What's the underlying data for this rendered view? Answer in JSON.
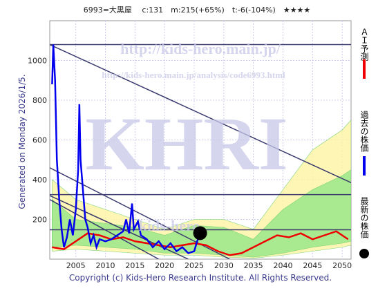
{
  "chart_data": {
    "type": "line",
    "title": "6993=大黒屋　 c:131　m:215(+65%)　t:-6(-104%)　★★★★",
    "side_note": "Generated on Monday 2026/1/5.",
    "copyright": "Copyright (c) Kids-Hero Research Institute. All Rights Reserved.",
    "watermarks": [
      "http://kids-hero.main.jp/",
      "http://kids-hero.main.jp/analysis/code6993.html",
      "KHRI",
      "kids-hero"
    ],
    "xlim": [
      2000.6,
      2051.5
    ],
    "ylim": [
      0,
      1200
    ],
    "xticks": [
      2005,
      2010,
      2015,
      2020,
      2025,
      2030,
      2035,
      2040,
      2045,
      2050
    ],
    "yticks": [
      200,
      400,
      600,
      800,
      1000
    ],
    "grid": true,
    "bands": [
      {
        "color": "#fdf5a8",
        "x": [
          2001,
          2005,
          2010,
          2015,
          2020,
          2025,
          2030,
          2035,
          2040,
          2045,
          2050,
          2051.5
        ],
        "low": [
          40,
          50,
          40,
          30,
          20,
          20,
          10,
          5,
          20,
          40,
          60,
          70
        ],
        "high": [
          400,
          300,
          250,
          200,
          150,
          200,
          200,
          150,
          350,
          550,
          650,
          700
        ]
      },
      {
        "color": "#9be88a",
        "x": [
          2001,
          2005,
          2010,
          2015,
          2020,
          2025,
          2030,
          2035,
          2040,
          2045,
          2050,
          2051.5
        ],
        "low": [
          60,
          70,
          60,
          50,
          30,
          30,
          20,
          10,
          30,
          60,
          80,
          90
        ],
        "high": [
          300,
          200,
          180,
          160,
          120,
          170,
          160,
          100,
          250,
          350,
          420,
          450
        ]
      }
    ],
    "line_color": "#3a3a6e",
    "lines": [
      {
        "x": [
          2000.6,
          2051.5
        ],
        "values": [
          1080,
          1080
        ]
      },
      {
        "x": [
          2000.6,
          2051.5
        ],
        "values": [
          1080,
          385
        ]
      },
      {
        "x": [
          2000.6,
          2031
        ],
        "values": [
          460,
          0
        ]
      },
      {
        "x": [
          2000.6,
          2024
        ],
        "values": [
          320,
          0
        ]
      },
      {
        "x": [
          2000.6,
          2019
        ],
        "values": [
          300,
          0
        ]
      },
      {
        "x": [
          2000.6,
          2051.5
        ],
        "values": [
          325,
          325
        ]
      },
      {
        "x": [
          2000.6,
          2051.5
        ],
        "values": [
          148,
          148
        ]
      }
    ],
    "series": [
      {
        "name": "ＡＩ予測",
        "color": "#ee0000",
        "x": [
          2001,
          2003,
          2005,
          2007,
          2009,
          2011,
          2013,
          2015,
          2017,
          2019,
          2021,
          2023,
          2025,
          2027,
          2029,
          2031,
          2033,
          2035,
          2037,
          2039,
          2041,
          2043,
          2045,
          2047,
          2049,
          2051
        ],
        "values": [
          60,
          50,
          90,
          130,
          120,
          100,
          110,
          90,
          80,
          70,
          60,
          70,
          80,
          70,
          40,
          20,
          30,
          60,
          90,
          120,
          110,
          130,
          100,
          120,
          140,
          100
        ]
      },
      {
        "name": "過去の株価",
        "color": "#0000ee",
        "x": [
          2001,
          2001.2,
          2001.5,
          2001.8,
          2002.2,
          2002.6,
          2003,
          2003.5,
          2004,
          2004.5,
          2005,
          2005.4,
          2005.6,
          2005.8,
          2006.2,
          2006.6,
          2007,
          2007.5,
          2008,
          2008.5,
          2009,
          2010,
          2011,
          2012,
          2013,
          2013.5,
          2014,
          2014.5,
          2014.8,
          2015.5,
          2016,
          2017,
          2018,
          2019,
          2020,
          2021,
          2022,
          2023,
          2024,
          2025,
          2025.5,
          2026
        ],
        "values": [
          880,
          1080,
          900,
          500,
          300,
          150,
          60,
          110,
          200,
          120,
          250,
          450,
          780,
          500,
          350,
          200,
          160,
          80,
          120,
          60,
          100,
          90,
          100,
          120,
          140,
          200,
          130,
          280,
          150,
          190,
          120,
          100,
          60,
          90,
          50,
          80,
          40,
          60,
          30,
          40,
          90,
          131
        ]
      },
      {
        "name": "最新の株価",
        "color": "#000000",
        "marker": "circle",
        "x": [
          2026
        ],
        "values": [
          131
        ]
      }
    ]
  }
}
